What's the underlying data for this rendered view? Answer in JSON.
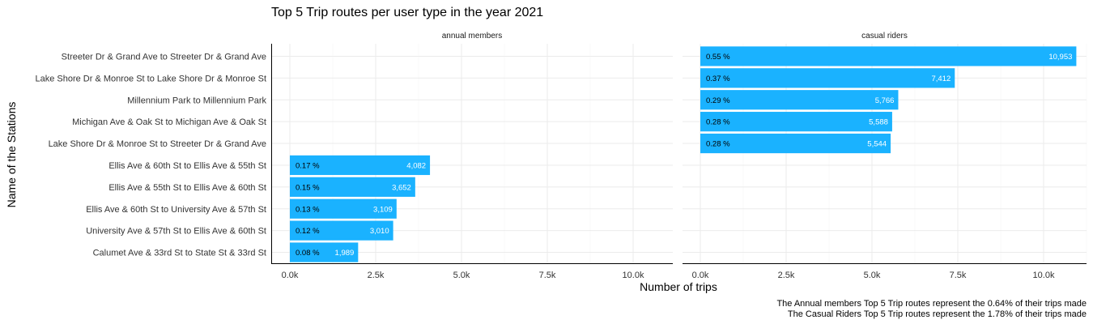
{
  "chart_data": {
    "type": "bar",
    "orientation": "horizontal",
    "title": "Top 5 Trip routes per user type in the year 2021",
    "xlabel": "Number of trips",
    "ylabel": "Name of the Stations",
    "xlim": [
      0,
      11500
    ],
    "x_ticks": [
      0,
      2500,
      5000,
      7500,
      10000
    ],
    "x_tick_labels": [
      "0.0k",
      "2.5k",
      "5.0k",
      "7.5k",
      "10.0k"
    ],
    "grid": true,
    "categories": [
      "Streeter Dr & Grand Ave to Streeter Dr & Grand Ave",
      "Lake Shore Dr & Monroe St to Lake Shore Dr & Monroe St",
      "Millennium Park to Millennium Park",
      "Michigan Ave & Oak St to Michigan Ave & Oak St",
      "Lake Shore Dr & Monroe St to Streeter Dr & Grand Ave",
      "Ellis Ave & 60th St to Ellis Ave & 55th St",
      "Ellis Ave & 55th St to Ellis Ave & 60th St",
      "Ellis Ave & 60th St to University Ave & 57th St",
      "University Ave & 57th St to Ellis Ave & 60th St",
      "Calumet Ave & 33rd St to State St & 33rd St"
    ],
    "bar_color": "#1ab2ff",
    "panels": [
      {
        "name": "annual members",
        "bars": [
          {
            "category_index": 5,
            "value": 4082,
            "value_label": "4,082",
            "pct_label": "0.17 %"
          },
          {
            "category_index": 6,
            "value": 3652,
            "value_label": "3,652",
            "pct_label": "0.15 %"
          },
          {
            "category_index": 7,
            "value": 3109,
            "value_label": "3,109",
            "pct_label": "0.13 %"
          },
          {
            "category_index": 8,
            "value": 3010,
            "value_label": "3,010",
            "pct_label": "0.12 %"
          },
          {
            "category_index": 9,
            "value": 1989,
            "value_label": "1,989",
            "pct_label": "0.08 %"
          }
        ]
      },
      {
        "name": "casual riders",
        "bars": [
          {
            "category_index": 0,
            "value": 10953,
            "value_label": "10,953",
            "pct_label": "0.55 %"
          },
          {
            "category_index": 1,
            "value": 7412,
            "value_label": "7,412",
            "pct_label": "0.37 %"
          },
          {
            "category_index": 2,
            "value": 5766,
            "value_label": "5,766",
            "pct_label": "0.29 %"
          },
          {
            "category_index": 3,
            "value": 5588,
            "value_label": "5,588",
            "pct_label": "0.28 %"
          },
          {
            "category_index": 4,
            "value": 5544,
            "value_label": "5,544",
            "pct_label": "0.28 %"
          }
        ]
      }
    ],
    "captions": [
      "The Annual members Top 5 Trip routes represent the 0.64% of their trips made",
      "The Casual Riders Top 5 Trip routes represent the 1.78% of their trips made"
    ]
  }
}
